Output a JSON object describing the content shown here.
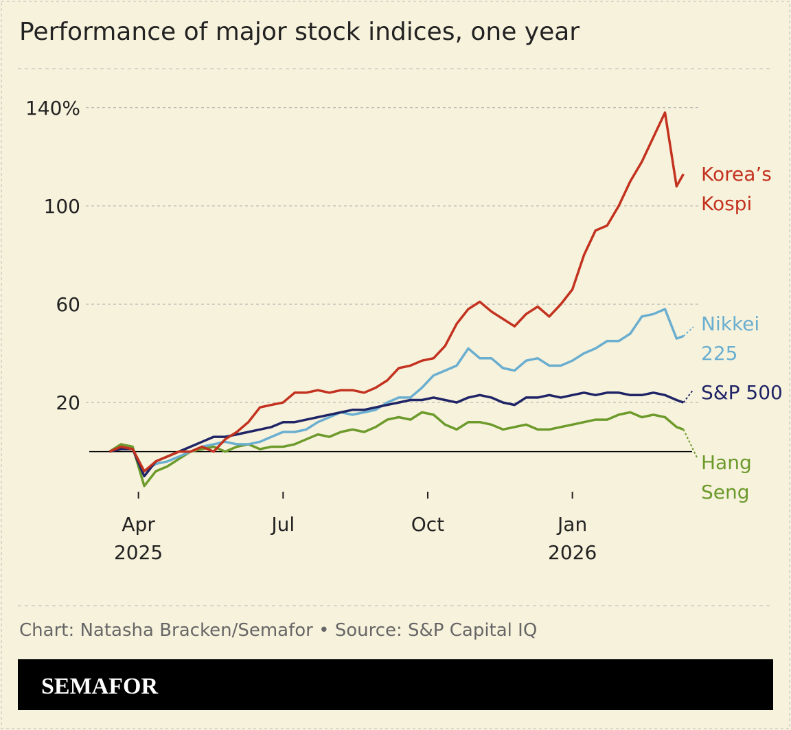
{
  "chart_data": {
    "type": "line",
    "title": "Performance of major stock indices, one year",
    "source": "Chart: Natasha Bracken/Semafor • Source: S&P Capital IQ",
    "brand": "SEMAFOR",
    "x": [
      2025.2,
      2025.22,
      2025.24,
      2025.26,
      2025.28,
      2025.3,
      2025.32,
      2025.34,
      2025.36,
      2025.38,
      2025.4,
      2025.42,
      2025.44,
      2025.46,
      2025.48,
      2025.5,
      2025.52,
      2025.54,
      2025.56,
      2025.58,
      2025.6,
      2025.62,
      2025.64,
      2025.66,
      2025.68,
      2025.7,
      2025.72,
      2025.74,
      2025.76,
      2025.78,
      2025.8,
      2025.82,
      2025.84,
      2025.86,
      2025.88,
      2025.9,
      2025.92,
      2025.94,
      2025.96,
      2025.98,
      2026.0,
      2026.02,
      2026.04,
      2026.06,
      2026.08,
      2026.1,
      2026.12,
      2026.14,
      2026.16,
      2026.18,
      2026.192
    ],
    "xlim": [
      2025.165,
      2026.21
    ],
    "xticks": [
      {
        "value": 2025.25,
        "label": "Apr",
        "sublabel": "2025"
      },
      {
        "value": 2025.5,
        "label": "Jul"
      },
      {
        "value": 2025.75,
        "label": "Oct"
      },
      {
        "value": 2026.0,
        "label": "Jan",
        "sublabel": "2026"
      }
    ],
    "ylim": [
      -18,
      150
    ],
    "yticks": [
      20,
      60,
      100,
      {
        "value": 140,
        "label": "140%"
      }
    ],
    "grid": true,
    "series": [
      {
        "name": "Korea’s Kospi",
        "color": "#c2321f",
        "values": [
          0,
          2,
          1,
          -8,
          -4,
          -2,
          0,
          0,
          2,
          0,
          5,
          8,
          12,
          18,
          19,
          20,
          24,
          24,
          25,
          24,
          25,
          25,
          24,
          26,
          29,
          34,
          35,
          37,
          38,
          43,
          52,
          58,
          61,
          57,
          54,
          51,
          56,
          59,
          55,
          60,
          66,
          80,
          90,
          92,
          100,
          110,
          118,
          128,
          138,
          108,
          113
        ]
      },
      {
        "name": "Nikkei 225",
        "color": "#6aaed0",
        "values": [
          0,
          2,
          1,
          -8,
          -5,
          -4,
          -2,
          0,
          2,
          3,
          4,
          3,
          3,
          4,
          6,
          8,
          8,
          9,
          12,
          14,
          16,
          15,
          16,
          17,
          20,
          22,
          22,
          26,
          31,
          33,
          35,
          42,
          38,
          38,
          34,
          33,
          37,
          38,
          35,
          35,
          37,
          40,
          42,
          45,
          45,
          48,
          55,
          56,
          58,
          46,
          47
        ]
      },
      {
        "name": "S&P 500",
        "color": "#1f2466",
        "values": [
          0,
          1,
          1,
          -10,
          -4,
          -2,
          0,
          2,
          4,
          6,
          6,
          7,
          8,
          9,
          10,
          12,
          12,
          13,
          14,
          15,
          16,
          17,
          17,
          18,
          19,
          20,
          21,
          21,
          22,
          21,
          20,
          22,
          23,
          22,
          20,
          19,
          22,
          22,
          23,
          22,
          23,
          24,
          23,
          24,
          24,
          23,
          23,
          24,
          23,
          21,
          20
        ]
      },
      {
        "name": "Hang Seng",
        "color": "#6c9a2b",
        "values": [
          0,
          3,
          2,
          -14,
          -8,
          -6,
          -3,
          0,
          1,
          2,
          0,
          2,
          3,
          1,
          2,
          2,
          3,
          5,
          7,
          6,
          8,
          9,
          8,
          10,
          13,
          14,
          13,
          16,
          15,
          11,
          9,
          12,
          12,
          11,
          9,
          10,
          11,
          9,
          9,
          10,
          11,
          12,
          13,
          13,
          15,
          16,
          14,
          15,
          14,
          10,
          9
        ]
      }
    ]
  }
}
